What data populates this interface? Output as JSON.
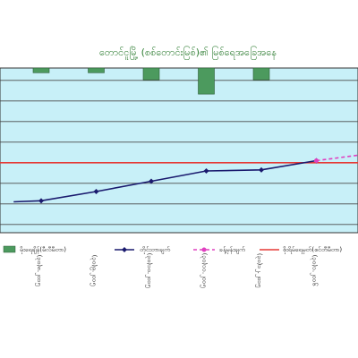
{
  "chart_data": {
    "type": "bar",
    "title": "တောင်ငူမြို့ (စစ်တောင်းမြစ်)၏ မြစ်ရေအခြေအနေ",
    "categories": [
      "(၃၀)၈.၂၀၁၅",
      "(၃၀)၉.၂၀၁၅",
      "(၃၀)၁၀.၂၀၁၅",
      "(၃၀)၁၁.၂၀၁၅",
      "(၃၀)၁၂.၂၀၁၅",
      "(၃၀)၁.၂၀၁၆"
    ],
    "series": [
      {
        "name": "မိုးရေချိန်(မီလီမီတာ)",
        "type": "bar",
        "color": "#4c9a5e",
        "values": [
          4,
          4,
          10,
          22,
          10,
          null
        ]
      },
      {
        "name": "တိုင်းတာချက်",
        "type": "line",
        "color": "#1a1a6e",
        "x": [
          -0.5,
          0,
          1,
          2,
          3,
          4,
          5
        ],
        "values": [
          -38,
          -37,
          -28,
          -18,
          -8,
          -7,
          2
        ]
      },
      {
        "name": "ခန့်မှန်းချက်",
        "type": "line",
        "style": "dashed",
        "color": "#e040c0",
        "x": [
          5,
          6
        ],
        "values": [
          2,
          9
        ]
      },
      {
        "name": "စိုးရိမ်ရေမှတ်(စင်တီမီတာ)",
        "type": "reference",
        "color": "#e53935",
        "value": 0
      }
    ],
    "ylim": [
      -68,
      92
    ],
    "grid": true,
    "legend": "bottom",
    "plot_background": "#c8f0f8"
  }
}
